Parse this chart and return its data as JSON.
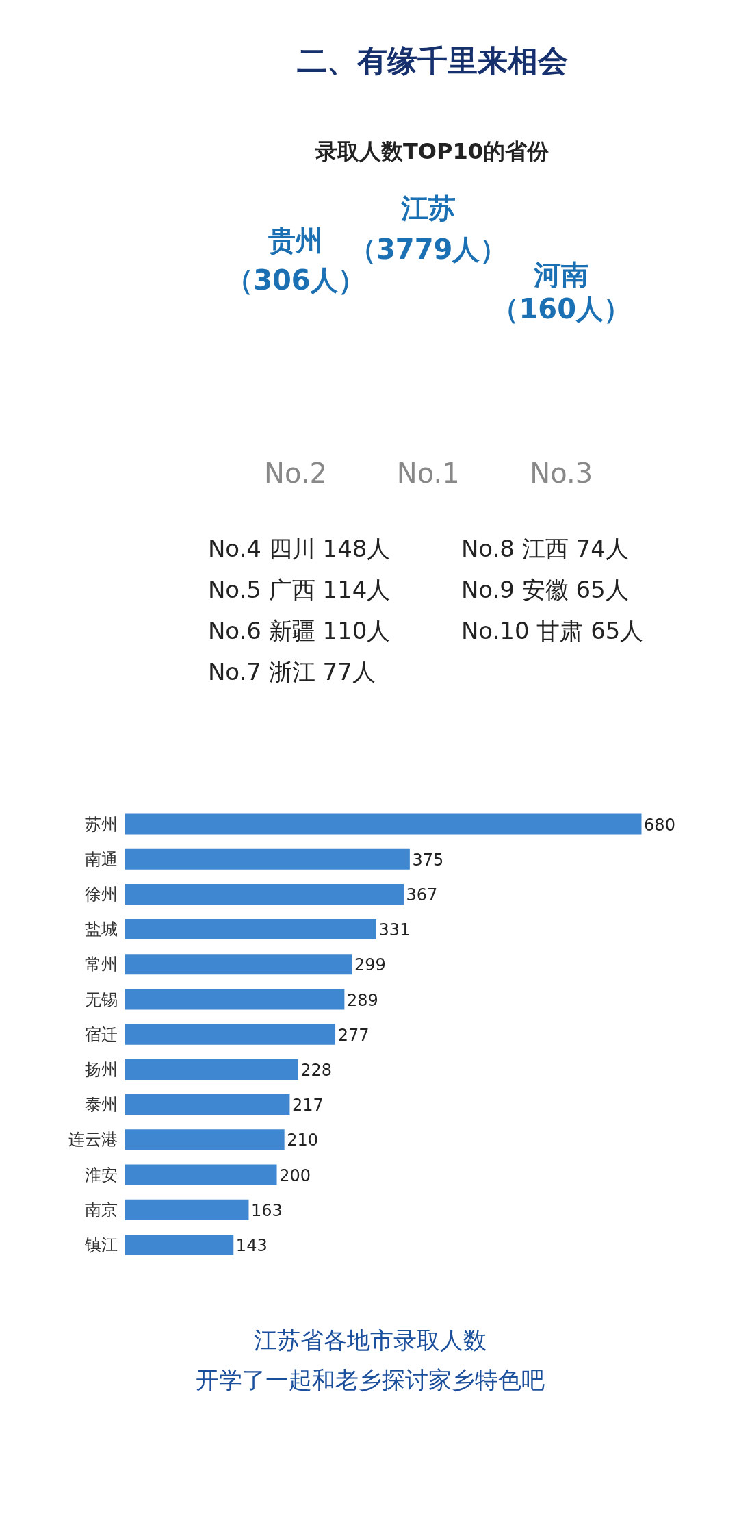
{
  "chart_data": [
    {
      "type": "other",
      "title": "二、有缘千里来相会",
      "subtitle": "录取人数TOP10的省份",
      "annotations": [
        "贵州",
        "（306人）",
        "江苏",
        "（3779人）",
        "河南",
        "（160人）",
        "No.2",
        "No.1",
        "No.3",
        "No.4  四川  148人",
        "No.5  广西  114人",
        "No.6  新疆  110人",
        "No.7  浙江  77人",
        "No.8  江西  74人",
        "No.9  安徽  65人",
        "No.10  甘肃  65人"
      ]
    },
    {
      "type": "bar",
      "orientation": "horizontal",
      "data_labels": true,
      "color": "#3f87d0",
      "categories": [
        "苏州",
        "南通",
        "徐州",
        "盐城",
        "常州",
        "无锡",
        "宿迁",
        "扬州",
        "泰州",
        "连云港",
        "淮安",
        "南京",
        "镇江"
      ],
      "values": [
        680,
        375,
        367,
        331,
        299,
        289,
        277,
        228,
        217,
        210,
        200,
        163,
        143
      ],
      "annotations": [
        "江苏省各地市录取人数",
        "开学了一起和老乡探讨家乡特色吧"
      ]
    }
  ]
}
